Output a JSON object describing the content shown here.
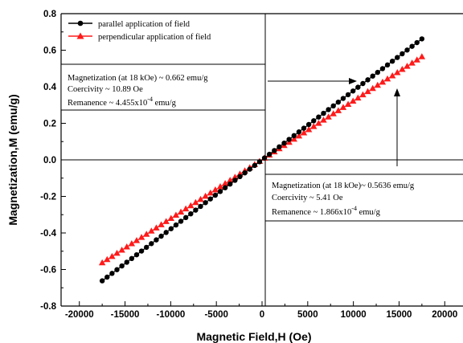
{
  "chart_data": {
    "type": "scatter",
    "xlabel": "Magnetic Field,H (Oe)",
    "ylabel": "Magnetization,M (emu/g)",
    "xlim": [
      -22000,
      22000
    ],
    "ylim": [
      -0.8,
      0.8
    ],
    "x_ticks": [
      "-20000",
      "-15000",
      "-10000",
      "-5000",
      "0",
      "5000",
      "10000",
      "15000",
      "20000"
    ],
    "y_ticks": [
      "-0.8",
      "-0.6",
      "-0.4",
      "-0.2",
      "0.0",
      "0.2",
      "0.4",
      "0.6",
      "0.8"
    ],
    "legend_position": "top-left",
    "series": [
      {
        "name": "parallel application of field",
        "color": "#000000",
        "marker": "circle",
        "x_range": [
          -17500,
          17500
        ],
        "y_range": [
          -0.662,
          0.662
        ],
        "points": 66
      },
      {
        "name": "perpendicular application of field",
        "color": "#ff1a1a",
        "marker": "triangle",
        "x_range": [
          -17500,
          17500
        ],
        "y_range": [
          -0.5636,
          0.5636
        ],
        "points": 66
      }
    ],
    "annotations": [
      {
        "lines": [
          "Magnetization (at 18 kOe) ~ 0.662 emu/g",
          "Coercivity ~ 10.89 Oe"
        ],
        "remanence_prefix": "Remanence ~ 4.455x10",
        "remanence_exp": "-4",
        "remanence_unit": " emu/g"
      },
      {
        "lines": [
          "Magnetization (at 18 kOe)~ 0.5636 emu/g",
          "Coercivity ~ 5.41 Oe"
        ],
        "remanence_prefix": "Remanence ~ 1.866x10",
        "remanence_exp": "-4",
        "remanence_unit": " emu/g"
      }
    ]
  }
}
